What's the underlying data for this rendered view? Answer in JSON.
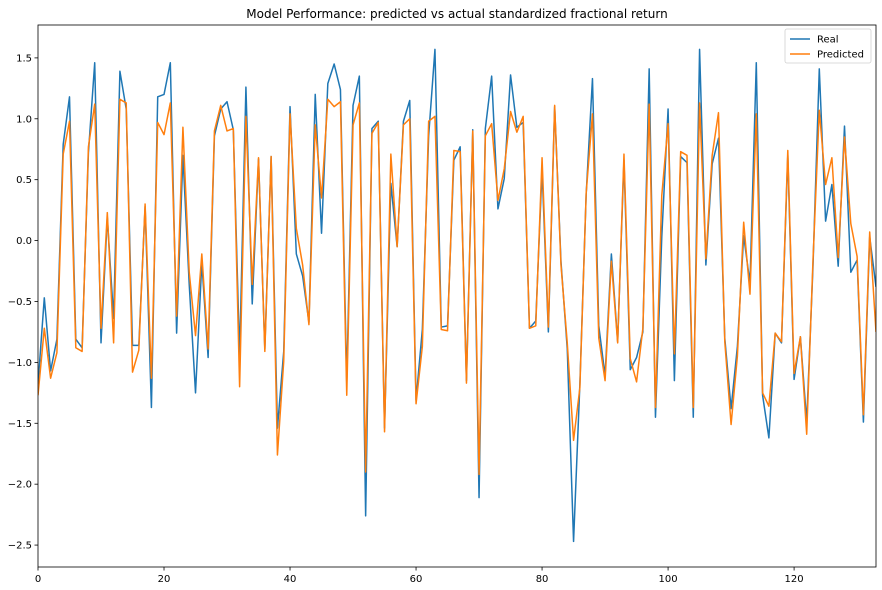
{
  "chart_data": {
    "type": "line",
    "title": "Model Performance: predicted vs actual standardized fractional return",
    "xlabel": "",
    "ylabel": "",
    "xlim": [
      0,
      133
    ],
    "ylim": [
      -2.68,
      1.77
    ],
    "x_ticks": [
      0,
      20,
      40,
      60,
      80,
      100,
      120
    ],
    "y_ticks": [
      -2.5,
      -2.0,
      -1.5,
      -1.0,
      -0.5,
      0.0,
      0.5,
      1.0,
      1.5
    ],
    "x_tick_labels": [
      "0",
      "20",
      "40",
      "60",
      "80",
      "100",
      "120"
    ],
    "y_tick_labels": [
      "−2.5",
      "−2.0",
      "−1.5",
      "−1.0",
      "−0.5",
      "0.0",
      "0.5",
      "1.0",
      "1.5"
    ],
    "grid": false,
    "legend": "top-right",
    "series": [
      {
        "name": "Real",
        "color": "#1f77b4",
        "values": [
          -1.18,
          -0.47,
          -1.07,
          -0.81,
          0.79,
          1.18,
          -0.81,
          -0.88,
          0.72,
          1.46,
          -0.84,
          0.19,
          -0.64,
          1.39,
          1.08,
          -0.86,
          -0.86,
          0.28,
          -1.37,
          1.18,
          1.2,
          1.46,
          -0.76,
          0.7,
          -0.36,
          -1.25,
          -0.18,
          -0.96,
          0.86,
          1.08,
          1.14,
          0.91,
          -0.95,
          1.26,
          -0.52,
          0.67,
          -0.89,
          0.69,
          -1.54,
          -0.91,
          1.1,
          -0.11,
          -0.29,
          -0.67,
          1.2,
          0.06,
          1.29,
          1.45,
          1.24,
          -1.16,
          1.11,
          1.35,
          -2.26,
          0.92,
          0.98,
          -1.54,
          0.47,
          -0.05,
          0.98,
          1.15,
          -1.31,
          -0.73,
          0.86,
          1.57,
          -0.71,
          -0.7,
          0.66,
          0.77,
          -1.15,
          0.91,
          -2.11,
          0.92,
          1.35,
          0.26,
          0.51,
          1.36,
          0.93,
          0.97,
          -0.72,
          -0.66,
          0.58,
          -0.75,
          1.1,
          -0.17,
          -0.89,
          -2.47,
          -1.18,
          0.38,
          1.33,
          -0.7,
          -1.11,
          -0.11,
          -0.83,
          0.66,
          -1.06,
          -0.96,
          -0.75,
          1.41,
          -1.45,
          0.03,
          1.08,
          -1.15,
          0.69,
          0.64,
          -1.45,
          1.57,
          -0.2,
          0.63,
          0.84,
          -0.8,
          -1.38,
          -0.87,
          0.04,
          -0.35,
          1.46,
          -1.27,
          -1.62,
          -0.76,
          -0.84,
          0.7,
          -1.14,
          -0.79,
          -1.49,
          -0.21,
          1.41,
          0.16,
          0.46,
          -0.21,
          0.94,
          -0.26,
          -0.16,
          -1.49,
          0.03,
          -0.38
        ]
      },
      {
        "name": "Predicted",
        "color": "#ff7f0e",
        "values": [
          -1.27,
          -0.72,
          -1.13,
          -0.92,
          0.71,
          0.98,
          -0.88,
          -0.91,
          0.77,
          1.12,
          -0.72,
          0.23,
          -0.84,
          1.16,
          1.13,
          -1.08,
          -0.9,
          0.3,
          -1.13,
          0.97,
          0.87,
          1.13,
          -0.62,
          0.93,
          -0.26,
          -0.78,
          -0.11,
          -0.89,
          0.9,
          1.11,
          0.9,
          0.92,
          -1.2,
          1.02,
          -0.36,
          0.68,
          -0.91,
          0.69,
          -1.76,
          -0.99,
          1.04,
          0.1,
          -0.2,
          -0.69,
          0.95,
          0.35,
          1.16,
          1.1,
          1.14,
          -1.27,
          0.95,
          1.13,
          -1.9,
          0.88,
          0.97,
          -1.57,
          0.71,
          -0.05,
          0.95,
          1.0,
          -1.34,
          -0.87,
          0.98,
          1.02,
          -0.73,
          -0.74,
          0.74,
          0.73,
          -1.17,
          0.9,
          -1.92,
          0.86,
          0.96,
          0.33,
          0.59,
          1.06,
          0.89,
          1.02,
          -0.72,
          -0.7,
          0.68,
          -0.71,
          1.11,
          -0.2,
          -0.84,
          -1.64,
          -1.21,
          0.39,
          1.04,
          -0.8,
          -1.15,
          -0.17,
          -0.84,
          0.71,
          -0.97,
          -1.16,
          -0.72,
          1.12,
          -1.37,
          0.37,
          0.96,
          -0.93,
          0.73,
          0.7,
          -1.37,
          1.13,
          -0.15,
          0.7,
          1.05,
          -0.83,
          -1.51,
          -0.95,
          0.15,
          -0.44,
          1.04,
          -1.25,
          -1.36,
          -0.76,
          -0.83,
          0.74,
          -1.09,
          -0.79,
          -1.59,
          -0.16,
          1.07,
          0.46,
          0.68,
          -0.14,
          0.85,
          0.14,
          -0.13,
          -1.43,
          0.07,
          -0.75
        ]
      }
    ]
  }
}
